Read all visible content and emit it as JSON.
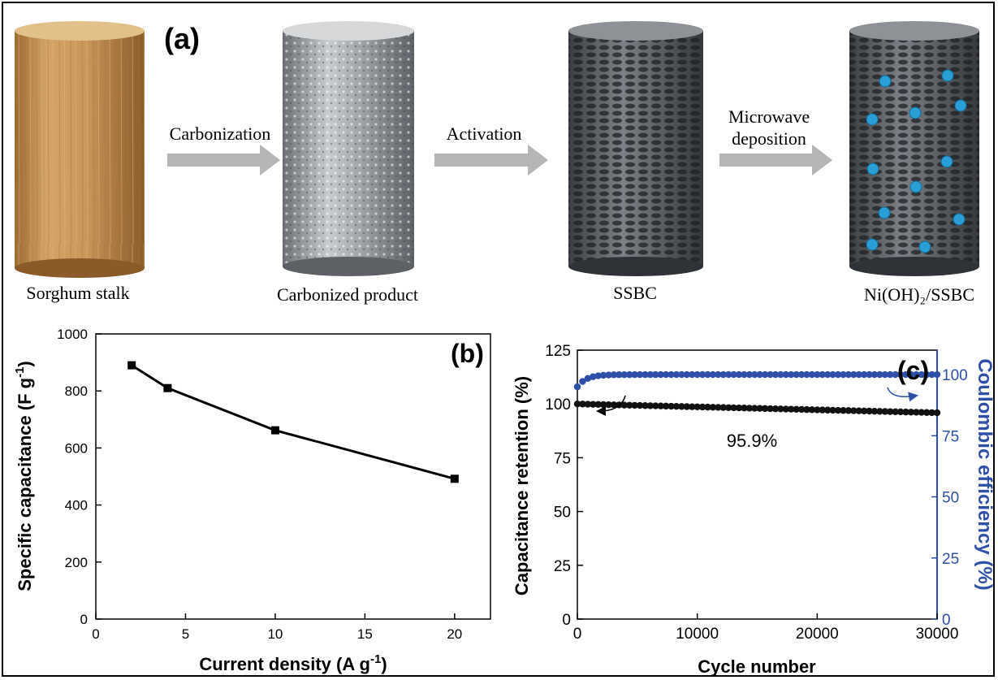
{
  "panel_a": {
    "label": "(a)",
    "stages": [
      {
        "label": "Sorghum stalk"
      },
      {
        "label": "Carbonized product"
      },
      {
        "label": "SSBC"
      },
      {
        "label": "Ni(OH)₂/SSBC"
      }
    ],
    "arrows": [
      {
        "label_lines": [
          "Carbonization"
        ]
      },
      {
        "label_lines": [
          "Activation"
        ]
      },
      {
        "label_lines": [
          "Microwave",
          "deposition"
        ]
      }
    ],
    "colors": {
      "wood": "#c9975a",
      "carbon": "#b8bbbf",
      "porous": "#4a4d52",
      "particle": "#2a9fd6",
      "arrow": "#b5b5b5"
    }
  },
  "chart_data": [
    {
      "panel_label": "(b)",
      "type": "line",
      "xlabel": "Current density (A g",
      "xlabel_sup": "-1",
      "xlabel_end": ")",
      "ylabel": "Specific capacitance (F g",
      "ylabel_sup": "-1",
      "ylabel_end": ")",
      "xlim": [
        0,
        22
      ],
      "ylim": [
        0,
        1000
      ],
      "xticks": [
        0,
        5,
        10,
        15,
        20
      ],
      "yticks": [
        0,
        200,
        400,
        600,
        800,
        1000
      ],
      "series": [
        {
          "x": [
            2,
            4,
            10,
            20
          ],
          "y": [
            890,
            810,
            662,
            492
          ],
          "color": "#000000",
          "marker": "square"
        }
      ],
      "grid": false
    },
    {
      "panel_label": "(c)",
      "type": "scatter",
      "xlabel": "Cycle number",
      "ylabel": "Capacitance retention (%)",
      "ylabel_right": "Coulombic efficiency (%)",
      "xlim": [
        0,
        30000
      ],
      "ylim": [
        0,
        125
      ],
      "ylim_right": [
        0,
        110
      ],
      "xticks": [
        0,
        10000,
        20000,
        30000
      ],
      "yticks": [
        0,
        25,
        50,
        75,
        100,
        125
      ],
      "yticks_right": [
        0,
        25,
        50,
        75,
        100
      ],
      "annotation": "95.9%",
      "series": [
        {
          "axis": "left",
          "color": "#111111",
          "x_start": 0,
          "x_end": 30000,
          "y_start": 100,
          "y_end": 95.9
        },
        {
          "axis": "right",
          "color": "#2e4fa8",
          "x_start": 0,
          "x_end": 30000,
          "y_start": 95,
          "y_end": 100
        }
      ],
      "grid": false
    }
  ]
}
